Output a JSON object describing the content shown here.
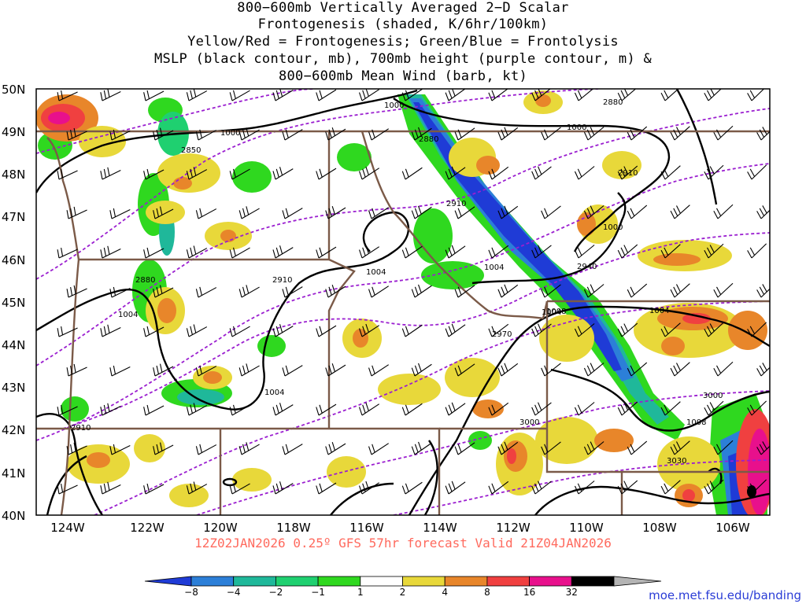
{
  "title_lines": [
    "800−600mb Vertically Averaged 2−D Scalar",
    "Frontogenesis (shaded, K/6hr/100km)",
    "Yellow/Red = Frontogenesis;  Green/Blue = Frontolysis",
    "MSLP (black contour, mb), 700mb height (purple contour, m) &",
    "800−600mb Mean Wind (barb, kt)"
  ],
  "lat_labels": [
    "50N",
    "49N",
    "48N",
    "47N",
    "46N",
    "45N",
    "44N",
    "43N",
    "42N",
    "41N",
    "40N"
  ],
  "lon_labels": [
    "124W",
    "122W",
    "120W",
    "118W",
    "116W",
    "114W",
    "112W",
    "110W",
    "108W",
    "106W"
  ],
  "map_extent": {
    "lon_min": -125,
    "lon_max": -105,
    "lat_min": 40,
    "lat_max": 50
  },
  "mslp_labels": [
    "1000",
    "1000",
    "1000",
    "1000",
    "1004",
    "1004",
    "1004",
    "1004",
    "1004",
    "1004",
    "1008",
    "1008"
  ],
  "height_labels": [
    "2850",
    "2880",
    "2880",
    "2880",
    "2910",
    "2910",
    "2910",
    "2940",
    "2970",
    "3000",
    "3000",
    "3030",
    "2910"
  ],
  "colorbar": {
    "ticks": [
      "−8",
      "−4",
      "−2",
      "−1",
      "1",
      "2",
      "4",
      "8",
      "16",
      "32"
    ],
    "colors": [
      "#1f3bd6",
      "#2c7fd8",
      "#1fb89a",
      "#1fd070",
      "#2fd81f",
      "#ffffff",
      "#e8d83a",
      "#e8862a",
      "#f04040",
      "#e8108c",
      "#000000",
      "#b4b4b4"
    ]
  },
  "subtitle": "12Z02JAN2026 0.25º GFS 57hr forecast Valid 21Z04JAN2026",
  "credit": "moe.met.fsu.edu/banding",
  "colors": {
    "mslp": "#000000",
    "height": "#9b1fd0",
    "border": "#7b5a48",
    "subtitle": "#ff6a5e",
    "credit": "#2a3cd6"
  }
}
